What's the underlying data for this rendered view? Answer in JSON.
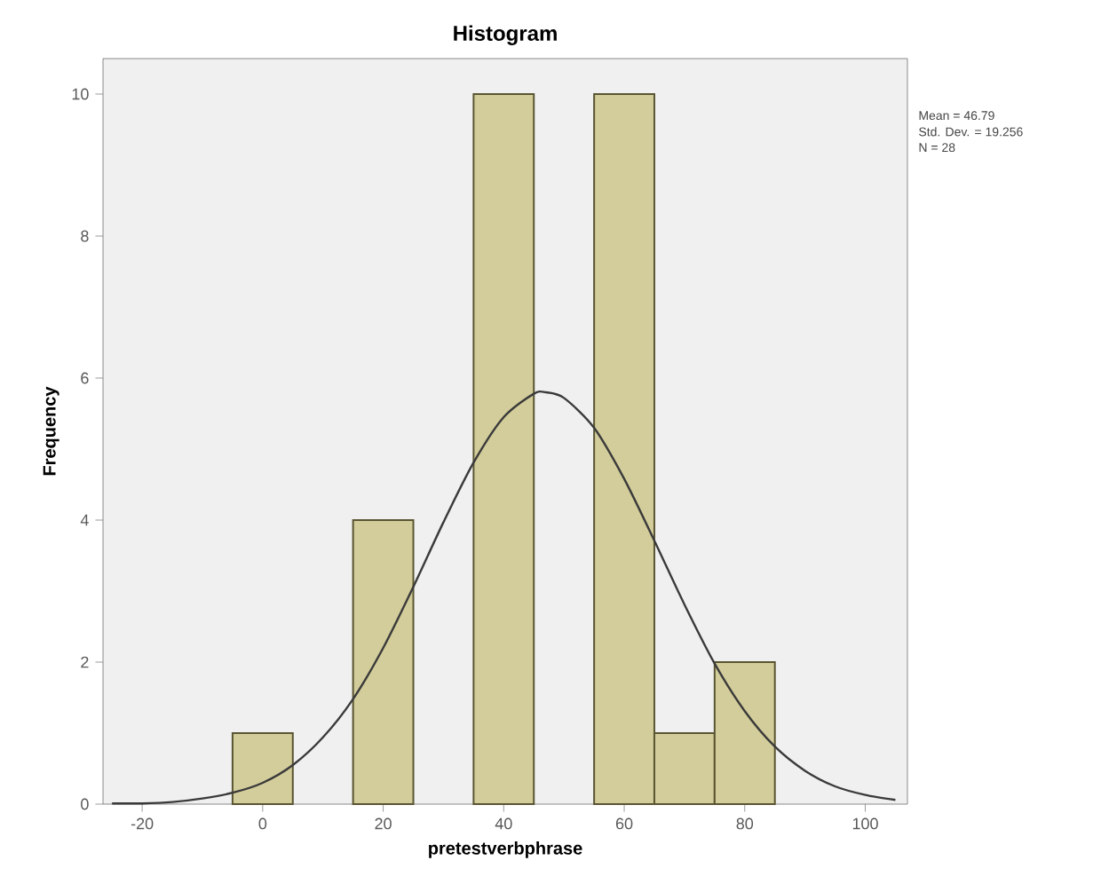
{
  "chart_data": {
    "type": "histogram",
    "title": "Histogram",
    "xlabel": "pretestverbphrase",
    "ylabel": "Frequency",
    "series": [
      {
        "bins": [
          -5,
          5,
          15,
          25,
          35,
          45,
          55,
          65,
          75,
          85
        ],
        "values": [
          1,
          0,
          4,
          0,
          10,
          0,
          10,
          1,
          2
        ],
        "color": "#d3cd9b"
      },
      {
        "type": "line",
        "x": [
          -25,
          -20,
          -15,
          -10,
          -5,
          0,
          5,
          10,
          15,
          20,
          25,
          30,
          35,
          40,
          45,
          47,
          50,
          55,
          60,
          65,
          70,
          75,
          80,
          85,
          90,
          95,
          100,
          105
        ],
        "values": [
          0.01,
          0.01,
          0.03,
          0.08,
          0.16,
          0.3,
          0.55,
          0.94,
          1.48,
          2.2,
          3.06,
          3.97,
          4.81,
          5.45,
          5.78,
          5.8,
          5.72,
          5.3,
          4.58,
          3.71,
          2.81,
          1.98,
          1.31,
          0.81,
          0.47,
          0.25,
          0.13,
          0.06
        ],
        "color": "#3a3a3a"
      }
    ],
    "xlim": [
      -26.5,
      107
    ],
    "ylim": [
      0,
      10.5
    ],
    "xticks": [
      -20,
      0,
      20,
      40,
      60,
      80,
      100
    ],
    "yticks": [
      0,
      2,
      4,
      6,
      8,
      10
    ],
    "annotations": [
      "Mean = 46.79",
      "Std. Dev. = 19.256",
      "N = 28"
    ]
  }
}
